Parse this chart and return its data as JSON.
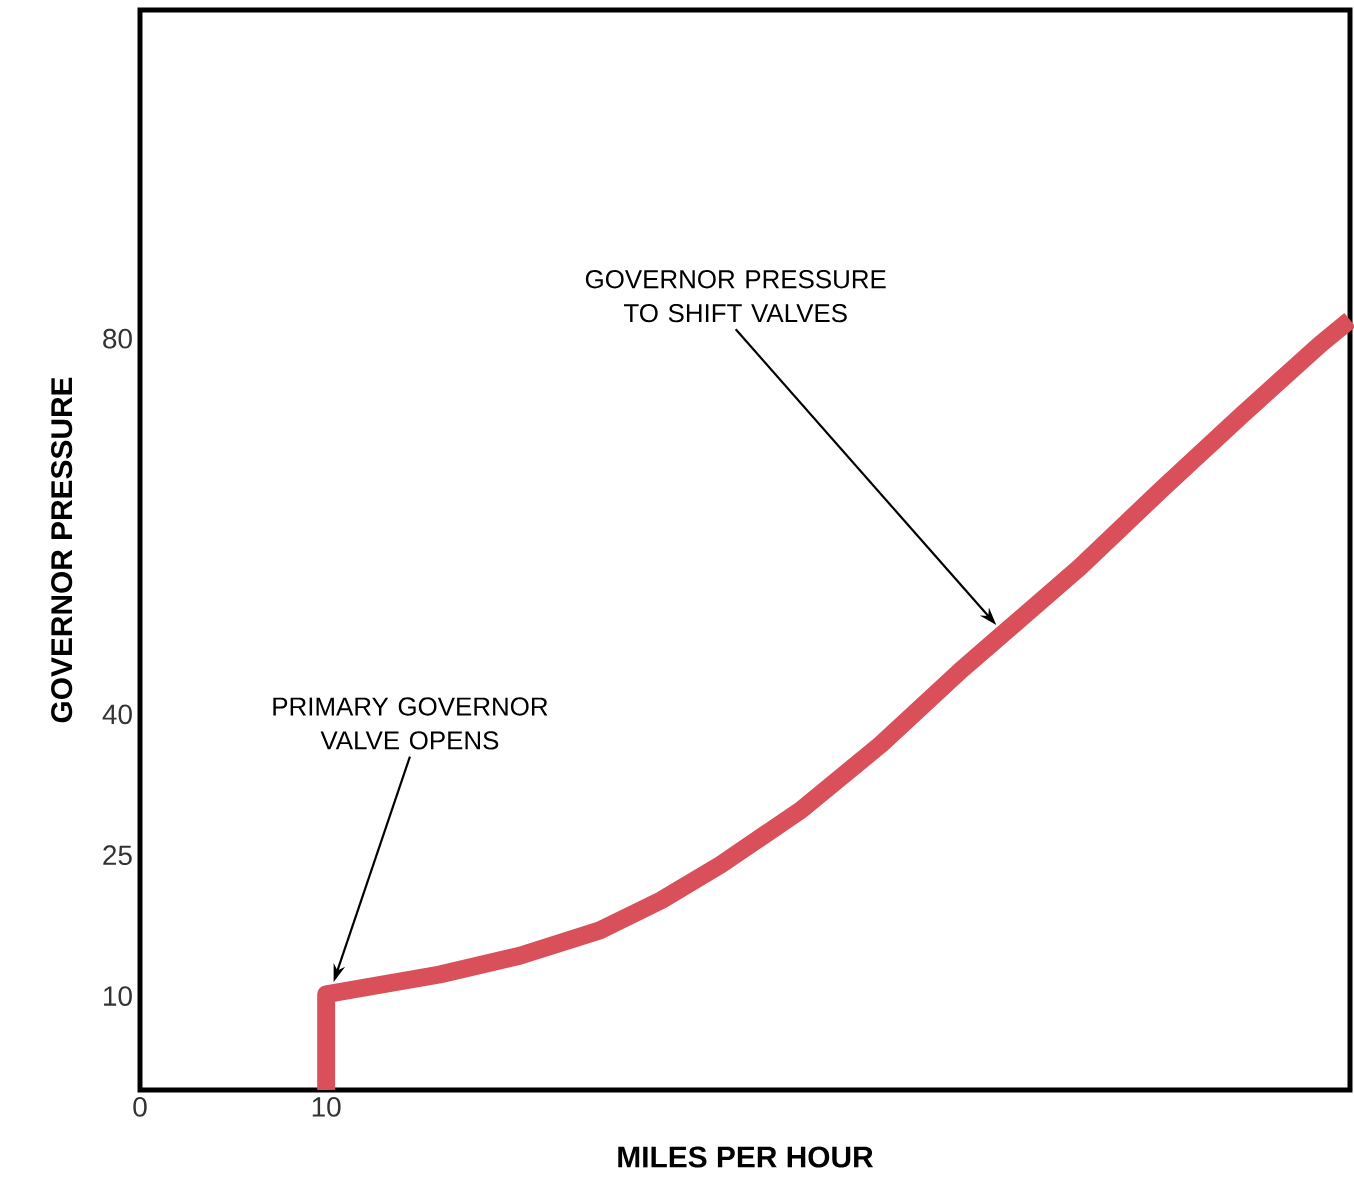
{
  "chart_data": {
    "type": "line",
    "xlabel": "MILES PER HOUR",
    "ylabel": "GOVERNOR PRESSURE",
    "x": [
      10,
      10,
      16.1,
      20.4,
      24.7,
      28.0,
      31.2,
      35.5,
      39.8,
      44.1,
      46.2,
      50.5,
      54.8,
      59.1,
      63.4,
      65
    ],
    "values": [
      0,
      10.2,
      12.3,
      14.3,
      17.0,
      20.2,
      24.0,
      29.8,
      36.8,
      44.7,
      48.3,
      55.7,
      63.8,
      71.7,
      79.4,
      82
    ],
    "color": "#d9505a",
    "xlim": [
      0,
      65
    ],
    "ylim": [
      0,
      115
    ],
    "xticks": [
      0,
      10
    ],
    "yticks": [
      10,
      25,
      40,
      80
    ],
    "annotations": [
      {
        "text": "PRIMARY GOVERNOR VALVE OPENS",
        "x": 10.4,
        "y": 11.5
      },
      {
        "text": "GOVERNOR PRESSURE TO SHIFT VALVES",
        "x": 46.0,
        "y": 49.5
      }
    ]
  }
}
